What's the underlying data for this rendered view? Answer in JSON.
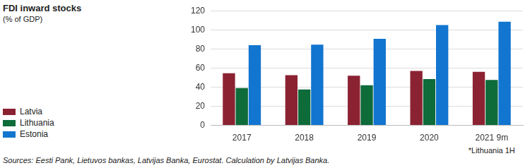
{
  "chart_data": {
    "type": "bar",
    "title": "FDI inward stocks",
    "subtitle": "(% of GDP)",
    "categories": [
      "2017",
      "2018",
      "2019",
      "2020",
      "2021 9m"
    ],
    "series": [
      {
        "name": "Latvia",
        "color": "#8b2232",
        "values": [
          54.5,
          52.5,
          52,
          57,
          56
        ]
      },
      {
        "name": "Lithuania",
        "color": "#0e6b3a",
        "values": [
          39,
          37.5,
          42,
          48.5,
          47.5
        ]
      },
      {
        "name": "Estonia",
        "color": "#1275d0",
        "values": [
          84,
          84.5,
          90.5,
          105,
          108.5
        ]
      }
    ],
    "ylim": [
      0,
      120
    ],
    "yticks": [
      0,
      20,
      40,
      60,
      80,
      100,
      120
    ],
    "grid": true,
    "legend": "left",
    "annotation": "*Lithuania 1H",
    "source": "Sources: Eesti Pank, Lietuvos bankas, Latvijas Banka, Eurostat. Calculation by Latvijas Banka."
  }
}
